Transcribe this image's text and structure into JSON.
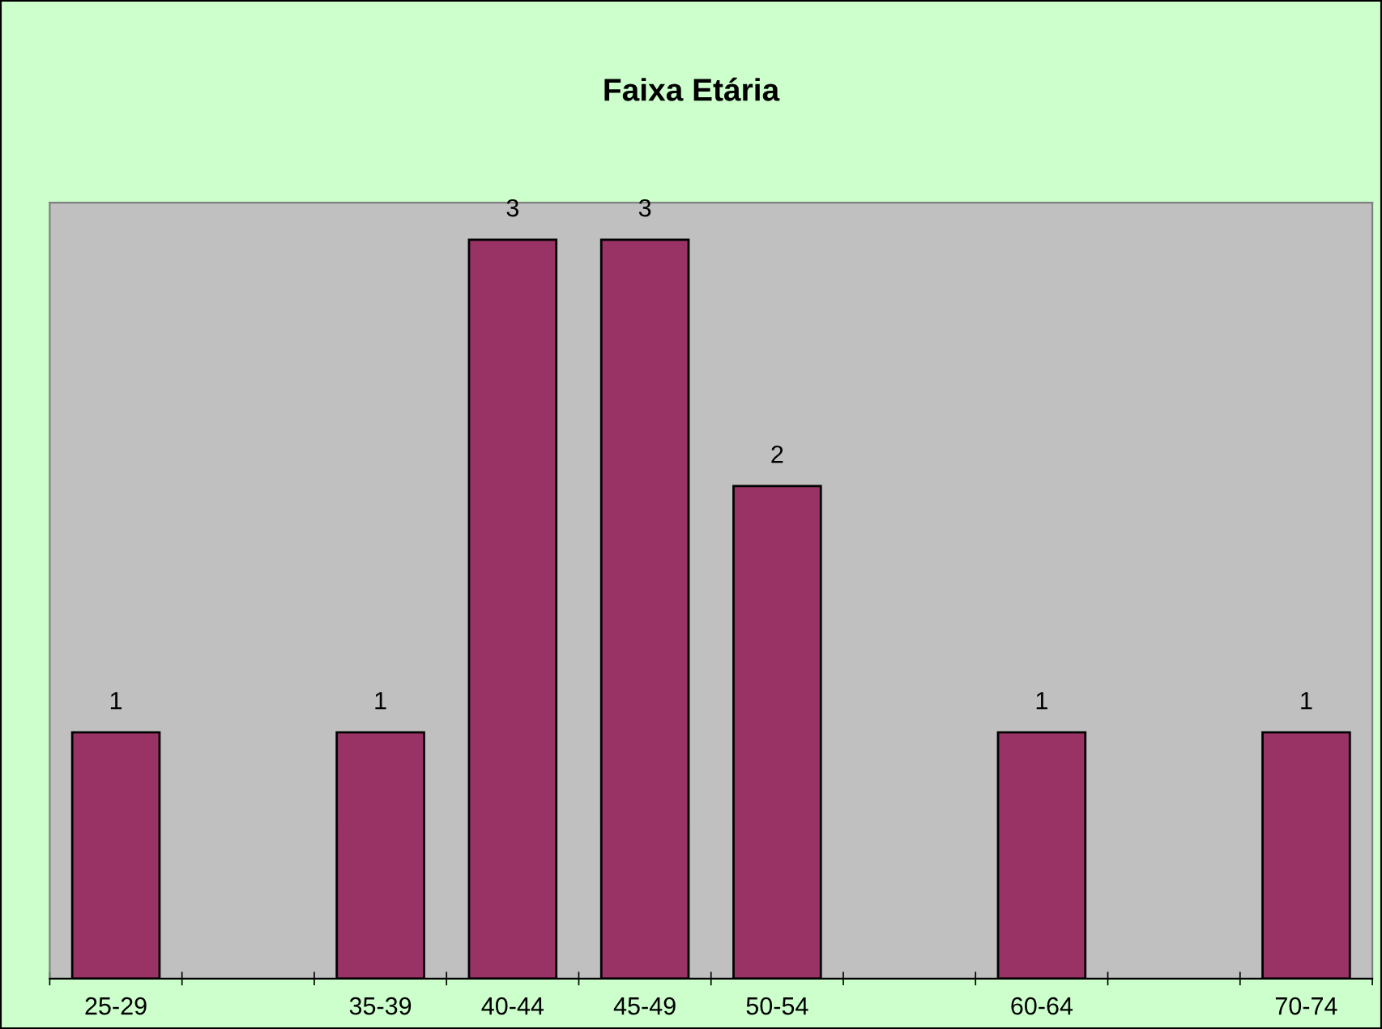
{
  "chart_data": {
    "type": "bar",
    "title": "Faixa Etária",
    "categories": [
      "25-29",
      null,
      "35-39",
      "40-44",
      "45-49",
      "50-54",
      null,
      "60-64",
      null,
      "70-74"
    ],
    "values": [
      1,
      null,
      1,
      3,
      3,
      2,
      null,
      1,
      null,
      1
    ],
    "color": "#993366",
    "data_labels": true
  }
}
